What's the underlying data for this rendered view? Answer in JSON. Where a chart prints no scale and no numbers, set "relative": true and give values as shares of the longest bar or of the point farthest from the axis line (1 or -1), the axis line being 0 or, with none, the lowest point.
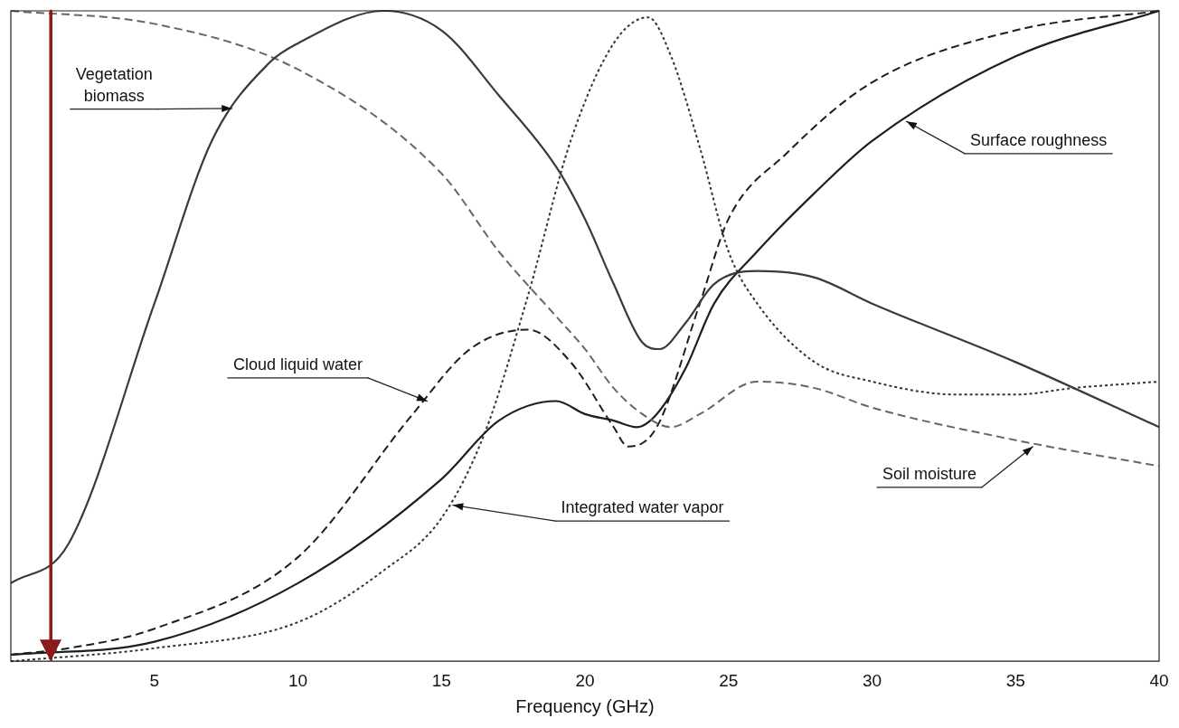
{
  "chart_data": {
    "type": "line",
    "relative": true,
    "xlabel": "Frequency (GHz)",
    "xlim": [
      0,
      40
    ],
    "xticks": [
      5,
      10,
      15,
      20,
      25,
      30,
      35,
      40
    ],
    "grid": false,
    "legend": false,
    "marker": "none",
    "series": [
      {
        "color": "#3a3a3a",
        "line_style": "solid",
        "x": [
          0,
          2,
          5,
          7,
          9,
          10,
          13,
          15,
          17,
          19,
          20,
          21,
          22,
          22.6,
          23.5,
          24.5,
          26,
          28,
          30,
          35,
          40
        ],
        "values": [
          0.12,
          0.18,
          0.55,
          0.8,
          0.92,
          0.95,
          1.0,
          0.97,
          0.87,
          0.76,
          0.68,
          0.58,
          0.49,
          0.48,
          0.52,
          0.58,
          0.6,
          0.59,
          0.55,
          0.46,
          0.36
        ]
      },
      {
        "color": "#666666",
        "line_style": "dashed",
        "x": [
          0,
          5,
          10,
          15,
          17,
          19,
          20,
          21,
          22,
          23,
          24,
          26,
          28,
          30,
          35,
          40
        ],
        "values": [
          1.0,
          0.98,
          0.91,
          0.75,
          0.63,
          0.53,
          0.48,
          0.42,
          0.38,
          0.36,
          0.38,
          0.43,
          0.42,
          0.39,
          0.34,
          0.3
        ]
      },
      {
        "color": "#1e1e1e",
        "line_style": "dashed",
        "x": [
          0,
          2,
          5,
          10,
          14,
          16,
          18,
          19.5,
          21,
          21.5,
          22.5,
          24,
          25,
          27,
          30,
          35,
          40
        ],
        "values": [
          0.01,
          0.02,
          0.05,
          0.16,
          0.38,
          0.48,
          0.51,
          0.46,
          0.36,
          0.33,
          0.36,
          0.55,
          0.68,
          0.78,
          0.89,
          0.97,
          1.0
        ]
      },
      {
        "color": "#1e1e1e",
        "line_style": "solid",
        "x": [
          0,
          5,
          10,
          15,
          17,
          19,
          20,
          21,
          21.8,
          22.5,
          23.5,
          24.5,
          26,
          28,
          30,
          35,
          40
        ],
        "values": [
          0.01,
          0.03,
          0.12,
          0.28,
          0.37,
          0.4,
          0.38,
          0.37,
          0.36,
          0.38,
          0.45,
          0.55,
          0.63,
          0.72,
          0.8,
          0.93,
          1.0
        ]
      },
      {
        "color": "#333333",
        "line_style": "dotted",
        "x": [
          0,
          5,
          10,
          13,
          15,
          16.5,
          18,
          19.5,
          21,
          22.2,
          23,
          24,
          25,
          26,
          28,
          30,
          33,
          35,
          37,
          40
        ],
        "values": [
          0.0,
          0.02,
          0.06,
          0.14,
          0.22,
          0.35,
          0.56,
          0.8,
          0.95,
          0.99,
          0.93,
          0.79,
          0.63,
          0.55,
          0.46,
          0.43,
          0.41,
          0.41,
          0.42,
          0.43
        ]
      }
    ],
    "annotations": [
      {
        "text": "Vegetation biomass",
        "x": 7.7,
        "y": 0.85
      },
      {
        "text": "Surface roughness",
        "x": 31.2,
        "y": 0.83
      },
      {
        "text": "Cloud liquid water",
        "x": 14.5,
        "y": 0.4
      },
      {
        "text": "Soil moisture",
        "x": 35.6,
        "y": 0.33
      },
      {
        "text": "Integrated water vapor",
        "x": 15.4,
        "y": 0.24
      }
    ],
    "ref_lines": [
      {
        "axis": "x",
        "value": 1.4,
        "color": "#8b1a1a"
      }
    ]
  }
}
